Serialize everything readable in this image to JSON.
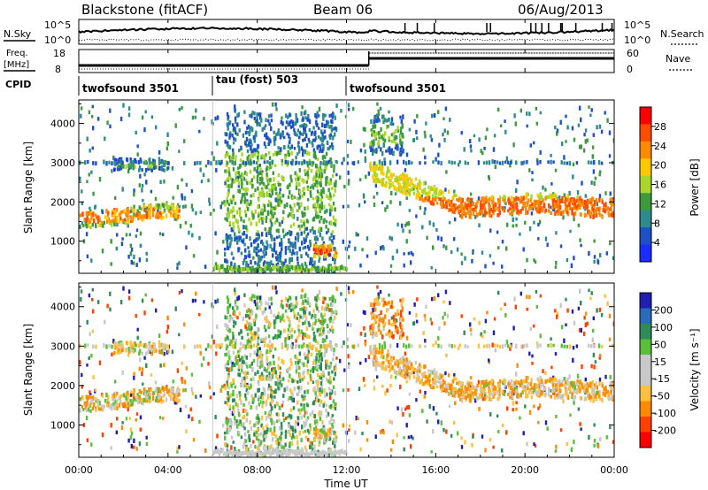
{
  "header": {
    "station": "Blackstone (fitACF)",
    "beam": "Beam 06",
    "date": "06/Aug/2013"
  },
  "top_panels": {
    "nsky_label": "N.Sky",
    "nsearch_label": "N.Search",
    "noise_ticks": [
      "10^5",
      "10^0"
    ],
    "freq_label_1": "Freq.",
    "freq_label_2": "[MHz]",
    "freq_ticks": [
      "18",
      "8"
    ],
    "nave_label": "Nave",
    "nave_ticks": [
      "60",
      "0"
    ],
    "cpid_label": "CPID",
    "cpid_segments": [
      {
        "label": "twofsound 3501",
        "start_hr": 0.0,
        "end_hr": 6.0
      },
      {
        "label": "tau (fost) 503",
        "start_hr": 6.0,
        "end_hr": 12.0
      },
      {
        "label": "twofsound 3501",
        "start_hr": 12.0,
        "end_hr": 24.0
      }
    ]
  },
  "panels": {
    "power": {
      "ylabel": "Slant Range [km]",
      "cbar_label": "Power [dB]",
      "cbar_ticks": [
        "28",
        "24",
        "20",
        "16",
        "12",
        "8",
        "4"
      ],
      "cbar_colors": [
        "#ff0000",
        "#ff4d00",
        "#ff8c00",
        "#ffc800",
        "#a8d62a",
        "#3c9a3c",
        "#2e8b8b",
        "#1e50c8",
        "#1a2cff"
      ]
    },
    "velocity": {
      "ylabel": "Slant Range [km]",
      "cbar_label": "Velocity [m s⁻¹]",
      "cbar_ticks": [
        "200",
        "100",
        "50",
        "15",
        "-15",
        "-50",
        "-100",
        "-200"
      ],
      "cbar_colors": [
        "#2020b0",
        "#2a6ab8",
        "#2e8b57",
        "#5abf3a",
        "#c8c8c8",
        "#c8c8c8",
        "#ffc040",
        "#ff8c00",
        "#ff4000",
        "#ff0000"
      ]
    }
  },
  "xaxis": {
    "label": "Time UT",
    "ticks": [
      "00:00",
      "04:00",
      "08:00",
      "12:00",
      "16:00",
      "20:00",
      "00:00"
    ]
  },
  "chart_data": {
    "type": "heatmap",
    "title": "Blackstone (fitACF) Beam 06 06/Aug/2013",
    "xlabel": "Time UT",
    "ylabel": "Slant Range [km]",
    "xlim_hours": [
      0,
      24
    ],
    "ylim_km": [
      180,
      4600
    ],
    "yticks_km": [
      1000,
      2000,
      3000,
      4000
    ],
    "power_colorbar": {
      "label": "Power [dB]",
      "range": [
        0,
        32
      ],
      "ticks": [
        4,
        8,
        12,
        16,
        20,
        24,
        28
      ]
    },
    "velocity_colorbar": {
      "label": "Velocity [m s⁻¹]",
      "range": [
        -250,
        250
      ],
      "ticks": [
        -200,
        -100,
        -50,
        -15,
        15,
        50,
        100,
        200
      ]
    },
    "backscatter_features": [
      {
        "time_hr": [
          0.0,
          4.5
        ],
        "range_km": [
          1300,
          2000
        ],
        "power_db": 20,
        "velocity": -30
      },
      {
        "time_hr": [
          1.5,
          4.0
        ],
        "range_km": [
          2800,
          3100
        ],
        "power_db": 8,
        "velocity": -10
      },
      {
        "time_hr": [
          6.5,
          11.5
        ],
        "range_km": [
          200,
          4300
        ],
        "power_db": 10,
        "velocity": 20
      },
      {
        "time_hr": [
          10.5,
          11.5
        ],
        "range_km": [
          600,
          900
        ],
        "power_db": 24,
        "velocity": -20
      },
      {
        "time_hr": [
          13.0,
          24.0
        ],
        "range_km": [
          1200,
          2400
        ],
        "power_db": 22,
        "velocity": -40
      },
      {
        "time_hr": [
          13.0,
          14.5
        ],
        "range_km": [
          3200,
          4200
        ],
        "power_db": 10,
        "velocity": -60
      }
    ],
    "cpid_ids": [
      3501,
      503,
      3501
    ],
    "nave_after_13ut": 55,
    "freq_mhz_before_13ut": 10,
    "freq_mhz_after_13ut": 16
  }
}
